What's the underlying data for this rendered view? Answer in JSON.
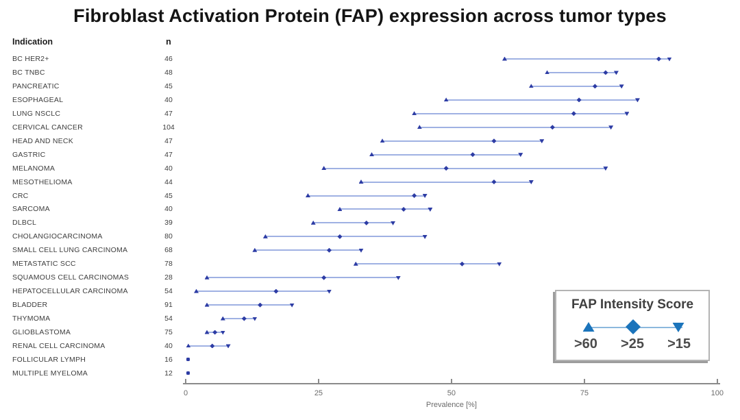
{
  "title": "Fibroblast Activation Protein (FAP) expression across tumor types",
  "table": {
    "indication_header": "Indication",
    "n_header": "n"
  },
  "axis": {
    "label": "Prevalence [%]",
    "ticks": [
      0,
      25,
      50,
      75,
      100
    ],
    "min": 0,
    "max": 100
  },
  "legend": {
    "title": "FAP Intensity Score",
    "items": [
      {
        "marker": "triangle-up-icon",
        "label": ">60"
      },
      {
        "marker": "diamond-icon",
        "label": ">25"
      },
      {
        "marker": "triangle-down-icon",
        "label": ">15"
      }
    ]
  },
  "colors": {
    "range_line": "#9fb1e3",
    "marker": "#2d3ca4",
    "legend_marker_fill": "#1b74bb",
    "legend_marker_stroke": "#14487a",
    "legend_line": "#8cb8dd",
    "axis": "#8a8a8a"
  },
  "chart_data": {
    "type": "scatter",
    "subtype": "dot-range-forest-plot",
    "title": "Fibroblast Activation Protein (FAP) expression across tumor types",
    "xlabel": "Prevalence [%]",
    "xlim": [
      0,
      100
    ],
    "x_ticks": [
      0,
      25,
      50,
      75,
      100
    ],
    "series_labels": [
      ">60",
      ">25",
      ">15"
    ],
    "legend_title": "FAP Intensity Score",
    "legend_position": "bottom-right",
    "rows": [
      {
        "indication": "BC HER2+",
        "n": 46,
        "values": [
          60,
          89,
          91
        ]
      },
      {
        "indication": "BC TNBC",
        "n": 48,
        "values": [
          68,
          79,
          81
        ]
      },
      {
        "indication": "PANCREATIC",
        "n": 45,
        "values": [
          65,
          77,
          82
        ]
      },
      {
        "indication": "ESOPHAGEAL",
        "n": 40,
        "values": [
          49,
          74,
          85
        ]
      },
      {
        "indication": "LUNG NSCLC",
        "n": 47,
        "values": [
          43,
          73,
          83
        ]
      },
      {
        "indication": "CERVICAL CANCER",
        "n": 104,
        "values": [
          44,
          69,
          80
        ]
      },
      {
        "indication": "HEAD AND NECK",
        "n": 47,
        "values": [
          37,
          58,
          67
        ]
      },
      {
        "indication": "GASTRIC",
        "n": 47,
        "values": [
          35,
          54,
          63
        ]
      },
      {
        "indication": "MELANOMA",
        "n": 40,
        "values": [
          26,
          49,
          79
        ]
      },
      {
        "indication": "MESOTHELIOMA",
        "n": 44,
        "values": [
          33,
          58,
          65
        ]
      },
      {
        "indication": "CRC",
        "n": 45,
        "values": [
          23,
          43,
          45
        ]
      },
      {
        "indication": "SARCOMA",
        "n": 40,
        "values": [
          29,
          41,
          46
        ]
      },
      {
        "indication": "DLBCL",
        "n": 39,
        "values": [
          24,
          34,
          39
        ]
      },
      {
        "indication": "CHOLANGIOCARCINOMA",
        "n": 80,
        "values": [
          15,
          29,
          45
        ]
      },
      {
        "indication": "SMALL CELL LUNG CARCINOMA",
        "n": 68,
        "values": [
          13,
          27,
          33
        ]
      },
      {
        "indication": "METASTATIC SCC",
        "n": 78,
        "values": [
          32,
          52,
          59
        ]
      },
      {
        "indication": "SQUAMOUS CELL CARCINOMAS",
        "n": 28,
        "values": [
          4,
          26,
          40
        ]
      },
      {
        "indication": "HEPATOCELLULAR CARCINOMA",
        "n": 54,
        "values": [
          2,
          17,
          27
        ]
      },
      {
        "indication": "BLADDER",
        "n": 91,
        "values": [
          4,
          14,
          20
        ]
      },
      {
        "indication": "THYMOMA",
        "n": 54,
        "values": [
          7,
          11,
          13
        ]
      },
      {
        "indication": "GLIOBLASTOMA",
        "n": 75,
        "values": [
          4,
          5.5,
          7
        ]
      },
      {
        "indication": "RENAL CELL CARCINOMA",
        "n": 40,
        "values": [
          0.5,
          5,
          8
        ]
      },
      {
        "indication": "FOLLICULAR LYMPH",
        "n": 16,
        "values": [
          0.5
        ],
        "point": true
      },
      {
        "indication": "MULTIPLE MYELOMA",
        "n": 12,
        "values": [
          0.5
        ],
        "point": true
      }
    ]
  }
}
